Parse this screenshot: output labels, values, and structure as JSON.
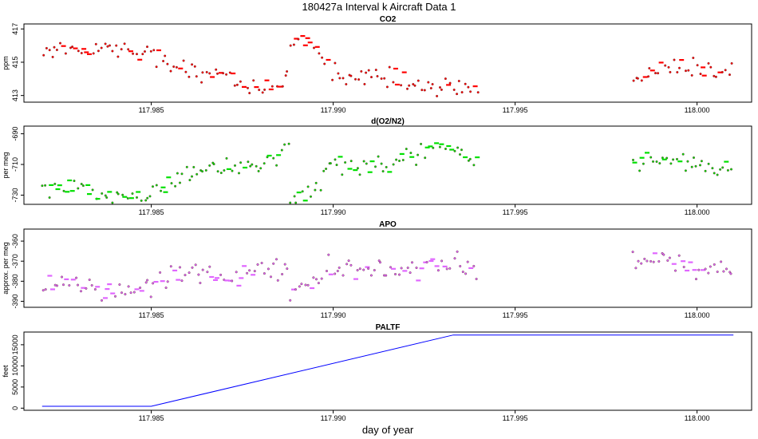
{
  "figure": {
    "title": "180427a   Interval k Aircraft Data 1",
    "xlabel": "day of year"
  },
  "chart_data": [
    {
      "type": "scatter",
      "title": "CO2",
      "ylabel": "ppm",
      "color": "#ff0000",
      "xlim": [
        117.9815,
        118.0015
      ],
      "ylim": [
        412.6,
        417.3
      ],
      "xticks": [
        117.985,
        117.99,
        117.995,
        118.0
      ],
      "xtick_labels": [
        "117.985",
        "117.990",
        "117.995",
        "118.000"
      ],
      "yticks": [
        413,
        415,
        417
      ],
      "ytick_labels": [
        "413",
        "415",
        "417"
      ],
      "segments": [
        {
          "x": [
            117.982,
            117.983,
            117.984,
            117.9845,
            117.985,
            117.9855,
            117.986,
            117.987,
            117.9875,
            117.988,
            117.9885,
            117.9888
          ],
          "y": [
            415.7,
            415.9,
            415.8,
            415.7,
            415.6,
            414.9,
            414.5,
            414.3,
            413.8,
            413.4,
            413.6,
            414.0
          ]
        },
        {
          "x": [
            117.9888,
            117.989,
            117.9895,
            117.99,
            117.991,
            117.992,
            117.993,
            117.994
          ],
          "y": [
            415.2,
            416.6,
            415.7,
            414.5,
            414.1,
            413.9,
            413.4,
            413.5
          ]
        },
        {
          "x": [
            117.9982,
            117.999,
            118.0,
            118.001
          ],
          "y": [
            414.0,
            414.7,
            414.5,
            414.7
          ]
        }
      ]
    },
    {
      "type": "scatter",
      "title": "d(O2/N2)",
      "ylabel": "per meg",
      "color": "#00e000",
      "xlim": [
        117.9815,
        118.0015
      ],
      "ylim": [
        -736,
        -685
      ],
      "xticks": [
        117.985,
        117.99,
        117.995,
        118.0
      ],
      "xtick_labels": [
        "117.985",
        "117.990",
        "117.995",
        "118.000"
      ],
      "yticks": [
        -730,
        -710,
        -690
      ],
      "ytick_labels": [
        "-730",
        "-710",
        "-690"
      ],
      "segments": [
        {
          "x": [
            117.982,
            117.983,
            117.984,
            117.985,
            117.986,
            117.987,
            117.988,
            117.9888
          ],
          "y": [
            -725,
            -727,
            -730,
            -731,
            -714,
            -712,
            -713,
            -697
          ]
        },
        {
          "x": [
            117.9888,
            117.9895,
            117.99,
            117.991,
            117.992,
            117.993,
            117.994
          ],
          "y": [
            -733,
            -725,
            -711,
            -712,
            -708,
            -698,
            -706
          ]
        },
        {
          "x": [
            117.9982,
            117.999,
            118.0,
            118.001
          ],
          "y": [
            -711,
            -705,
            -711,
            -713
          ]
        }
      ]
    },
    {
      "type": "scatter",
      "title": "APO",
      "ylabel": "approx. per meg",
      "color": "#e066ff",
      "xlim": [
        117.9815,
        118.0015
      ],
      "ylim": [
        -393,
        -354
      ],
      "xticks": [
        117.985,
        117.99,
        117.995,
        118.0
      ],
      "xtick_labels": [
        "117.985",
        "117.990",
        "117.995",
        "118.000"
      ],
      "yticks": [
        -390,
        -380,
        -370,
        -360
      ],
      "ytick_labels": [
        "-390",
        "-380",
        "-370",
        "-360"
      ],
      "segments": [
        {
          "x": [
            117.982,
            117.983,
            117.984,
            117.985,
            117.986,
            117.987,
            117.988,
            117.9888
          ],
          "y": [
            -381,
            -383,
            -386,
            -382,
            -376,
            -378,
            -375,
            -372
          ]
        },
        {
          "x": [
            117.9888,
            117.9895,
            117.99,
            117.991,
            117.992,
            117.993,
            117.994
          ],
          "y": [
            -386,
            -381,
            -372,
            -376,
            -374,
            -372,
            -375
          ]
        },
        {
          "x": [
            117.9982,
            117.999,
            118.0,
            118.001
          ],
          "y": [
            -374,
            -368,
            -374,
            -377
          ]
        }
      ]
    },
    {
      "type": "line",
      "title": "PALTF",
      "ylabel": "feet",
      "color": "#0000ff",
      "xlim": [
        117.9815,
        118.0015
      ],
      "ylim": [
        -500,
        18000
      ],
      "xticks": [
        117.985,
        117.99,
        117.995,
        118.0
      ],
      "xtick_labels": [
        "117.985",
        "117.990",
        "117.995",
        "118.000"
      ],
      "yticks": [
        0,
        5000,
        10000,
        15000
      ],
      "ytick_labels": [
        "0",
        "5000",
        "10000",
        "15000"
      ],
      "x": [
        117.982,
        117.985,
        117.9933,
        118.001
      ],
      "y": [
        450,
        450,
        17300,
        17300
      ]
    }
  ]
}
